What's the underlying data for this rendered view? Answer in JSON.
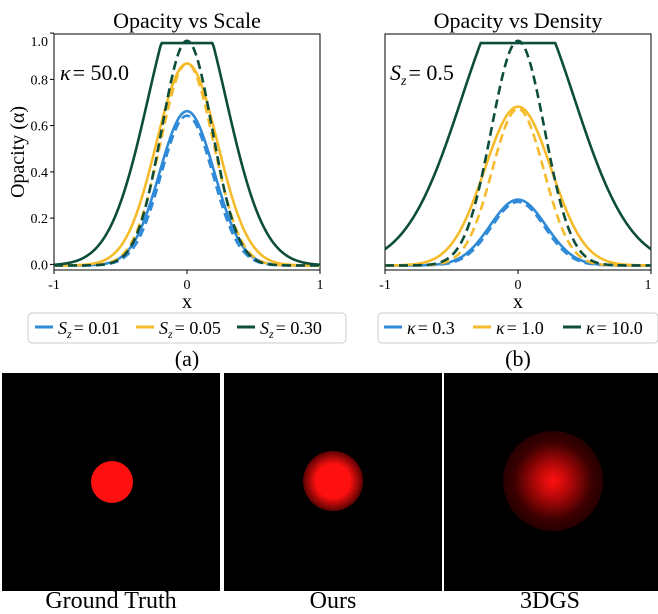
{
  "figure": {
    "subplot_a": "(a)",
    "subplot_b": "(b)",
    "x_axis_label": "x",
    "y_axis_label": "Opacity (α)"
  },
  "chart_data": [
    {
      "type": "line",
      "title": "Opacity vs Scale",
      "xlabel": "x",
      "ylabel": "Opacity (α)",
      "xlim": [
        -1,
        1
      ],
      "ylim": [
        -0.02,
        1.02
      ],
      "xticks": [
        -1,
        0,
        1
      ],
      "xtick_labels": [
        "-1",
        "0",
        "1"
      ],
      "yticks": [
        0.0,
        0.2,
        0.4,
        0.6,
        0.8,
        1.0
      ],
      "ytick_labels": [
        "0.0",
        "0.2",
        "0.4",
        "0.6",
        "0.8",
        "1.0"
      ],
      "annotation": {
        "symbol": "κ",
        "text": "= 50.0"
      },
      "legend_position": "bottom",
      "series": [
        {
          "name": "S_z = 0.01",
          "legend_symbol": "S",
          "legend_sub": "z",
          "legend_value": "= 0.01",
          "color": "#2f8ad8",
          "peak_solid": 0.68,
          "sigma_solid": 0.205,
          "peak_dashed": 0.66,
          "sigma_dashed": 0.195
        },
        {
          "name": "S_z = 0.05",
          "legend_symbol": "S",
          "legend_sub": "z",
          "legend_value": "= 0.05",
          "color": "#f6bb2b",
          "peak_solid": 0.89,
          "sigma_solid": 0.23,
          "peak_dashed": 0.89,
          "sigma_dashed": 0.2
        },
        {
          "name": "S_z = 0.30",
          "legend_symbol": "S",
          "legend_sub": "z",
          "legend_value": "= 0.30",
          "color": "#0d4d3c",
          "peak_solid": 0.98,
          "sigma_solid": 0.29,
          "peak_dashed": 0.99,
          "sigma_dashed": 0.19
        }
      ]
    },
    {
      "type": "line",
      "title": "Opacity vs Density",
      "xlabel": "x",
      "ylabel": "",
      "xlim": [
        -1,
        1
      ],
      "ylim": [
        -0.02,
        1.02
      ],
      "xticks": [
        -1,
        0,
        1
      ],
      "xtick_labels": [
        "-1",
        "0",
        "1"
      ],
      "annotation": {
        "symbol": "S",
        "sub": "z",
        "text": "= 0.5"
      },
      "legend_position": "bottom",
      "series": [
        {
          "name": "κ = 0.3",
          "legend_symbol": "κ",
          "legend_value": "= 0.3",
          "color": "#2f8ad8",
          "peak_solid": 0.29,
          "sigma_solid": 0.21,
          "peak_dashed": 0.28,
          "sigma_dashed": 0.2
        },
        {
          "name": "κ = 1.0",
          "legend_symbol": "κ",
          "legend_value": "= 1.0",
          "color": "#f6bb2b",
          "peak_solid": 0.7,
          "sigma_solid": 0.25,
          "peak_dashed": 0.69,
          "sigma_dashed": 0.195
        },
        {
          "name": "κ = 10.0",
          "legend_symbol": "κ",
          "legend_value": "= 10.0",
          "color": "#0d4d3c",
          "peak_solid": 0.98,
          "sigma_solid": 0.42,
          "peak_dashed": 0.99,
          "sigma_dashed": 0.2
        }
      ]
    }
  ],
  "renderings": [
    {
      "caption": "Ground Truth",
      "color": "#ff1010"
    },
    {
      "caption": "Ours",
      "color": "#ff1010"
    },
    {
      "caption": "3DGS",
      "color": "#ff1010"
    }
  ]
}
